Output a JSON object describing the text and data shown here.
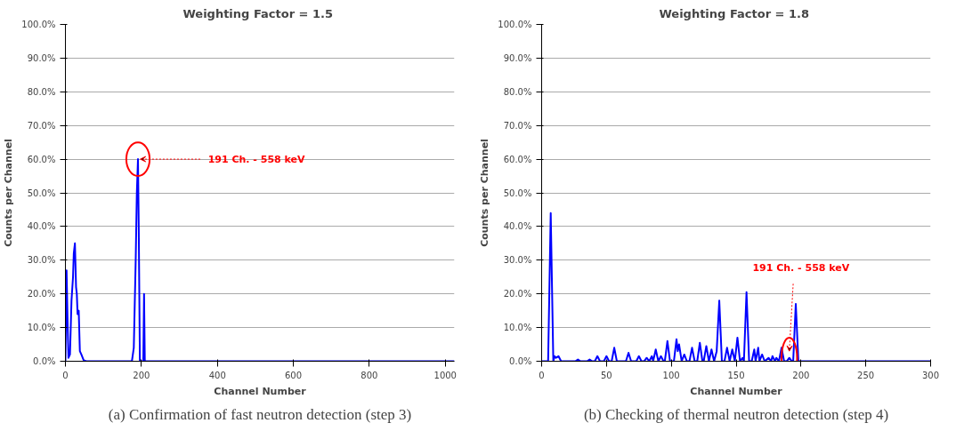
{
  "chart_data": [
    {
      "type": "line",
      "title": "Weighting Factor  = 1.5",
      "xlabel": "Channel Number",
      "ylabel": "Counts per Channel",
      "x": [
        0,
        3,
        6,
        8,
        12,
        16,
        20,
        22,
        25,
        28,
        30,
        32,
        35,
        38,
        42,
        48,
        55,
        175,
        180,
        185,
        188,
        191,
        193,
        196,
        205,
        207,
        209,
        1024
      ],
      "series": [
        {
          "color": "#0000ff",
          "values": [
            0,
            27,
            10,
            1,
            2,
            18,
            25,
            32,
            35,
            22,
            20,
            14,
            15,
            3,
            2,
            0.3,
            0,
            0,
            4,
            30,
            50,
            60,
            40,
            0,
            0,
            20,
            0,
            0
          ]
        }
      ],
      "xlim": [
        0,
        1024
      ],
      "xticks": [
        0,
        200,
        400,
        600,
        800,
        1000
      ],
      "ylim": [
        0,
        100
      ],
      "yticks": [
        {
          "value": 0,
          "label": "0.0%"
        },
        {
          "value": 10,
          "label": "10.0%"
        },
        {
          "value": 20,
          "label": "20.0%"
        },
        {
          "value": 30,
          "label": "30.0%"
        },
        {
          "value": 40,
          "label": "40.0%"
        },
        {
          "value": 50,
          "label": "50.0%"
        },
        {
          "value": 60,
          "label": "60.0%"
        },
        {
          "value": 70,
          "label": "70.0%"
        },
        {
          "value": 80,
          "label": "80.0%"
        },
        {
          "value": 90,
          "label": "90.0%"
        },
        {
          "value": 100,
          "label": "100.0%"
        }
      ],
      "grid": "y",
      "annotations": [
        {
          "text": "191 Ch. - 558 keV",
          "x": 191,
          "y": 60
        },
        "(a) Confirmation of fast neutron detection (step 3)"
      ]
    },
    {
      "type": "line",
      "title": "Weighting Factor  = 1.8",
      "xlabel": "Channel Number",
      "ylabel": "Counts per Channel",
      "x": [
        0,
        5,
        7,
        9,
        10,
        11,
        13,
        15,
        26,
        28,
        30,
        35,
        37,
        39,
        41,
        43,
        45,
        48,
        50,
        52,
        54,
        56,
        58,
        65,
        67,
        69,
        73,
        75,
        77,
        79,
        81,
        83,
        85,
        86,
        88,
        90,
        92,
        94,
        95,
        97,
        99,
        102,
        104,
        105,
        106,
        108,
        110,
        112,
        114,
        116,
        118,
        120,
        122,
        124,
        125,
        127,
        129,
        131,
        133,
        135,
        137,
        139,
        141,
        143,
        145,
        147,
        149,
        151,
        153,
        155,
        156,
        158,
        160,
        162,
        164,
        165,
        167,
        168,
        170,
        172,
        175,
        177,
        178,
        180,
        181,
        183,
        185,
        187,
        189,
        191,
        193,
        194,
        196,
        198,
        300
      ],
      "series": [
        {
          "color": "#0000ff",
          "values": [
            0,
            0,
            44,
            0,
            1.5,
            1,
            1.5,
            0,
            0,
            0.5,
            0,
            0,
            0.5,
            0,
            0,
            1.5,
            0,
            0,
            1.5,
            0,
            0,
            4,
            0,
            0,
            2.5,
            0,
            0,
            1.5,
            0,
            0,
            1,
            0,
            1.5,
            0,
            3.5,
            0,
            1.5,
            0,
            0,
            6,
            0,
            0,
            6.5,
            3,
            5,
            0,
            2,
            0,
            0,
            4,
            0,
            0,
            5.5,
            0,
            0,
            4.5,
            0,
            3.5,
            0,
            3,
            18,
            0,
            0,
            4,
            0,
            3.5,
            0,
            7,
            0,
            1,
            0,
            20.5,
            0,
            0,
            3.5,
            0,
            4,
            0,
            2,
            0,
            1,
            0,
            1.5,
            0,
            1,
            0,
            4,
            0,
            0,
            1,
            0,
            0,
            17,
            0,
            0
          ]
        }
      ],
      "xlim": [
        0,
        300
      ],
      "xticks": [
        0,
        50,
        100,
        150,
        200,
        250,
        300
      ],
      "ylim": [
        0,
        100
      ],
      "yticks": [
        {
          "value": 0,
          "label": "0.0%"
        },
        {
          "value": 10,
          "label": "10.0%"
        },
        {
          "value": 20,
          "label": "20.0%"
        },
        {
          "value": 30,
          "label": "30.0%"
        },
        {
          "value": 40,
          "label": "40.0%"
        },
        {
          "value": 50,
          "label": "50.0%"
        },
        {
          "value": 60,
          "label": "60.0%"
        },
        {
          "value": 70,
          "label": "70.0%"
        },
        {
          "value": 80,
          "label": "80.0%"
        },
        {
          "value": 90,
          "label": "90.0%"
        },
        {
          "value": 100,
          "label": "100.0%"
        }
      ],
      "grid": "y",
      "annotations": [
        {
          "text": "191 Ch. - 558 keV",
          "x": 191,
          "y": 1
        },
        "(b) Checking of thermal neutron detection (step 4)"
      ]
    }
  ]
}
